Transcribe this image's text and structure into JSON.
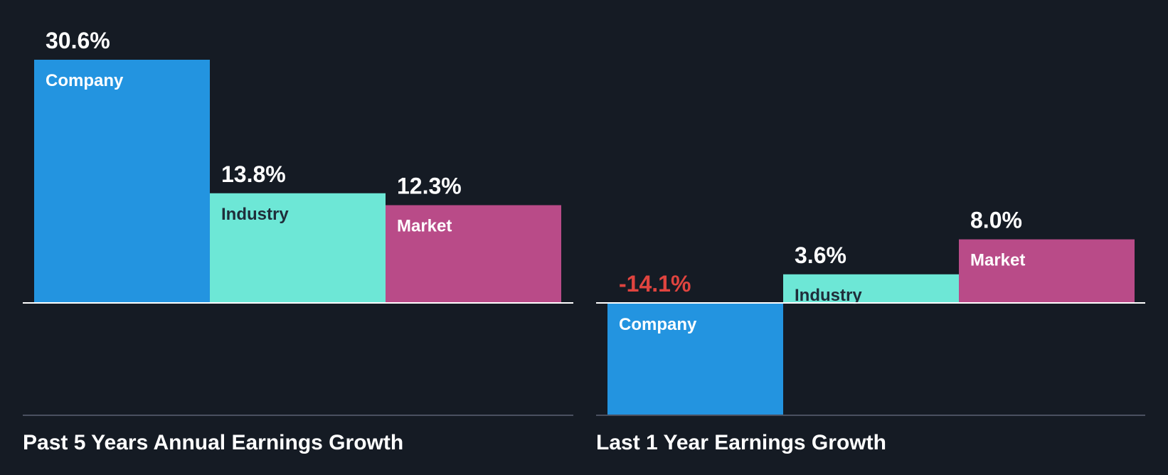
{
  "colors": {
    "background": "#151b24",
    "company": "#2394e0",
    "industry": "#6de7d6",
    "market": "#b94b88",
    "negative_value": "#e0443f",
    "value_text": "#ffffff",
    "axis": "#ffffff",
    "divider": "#4a5060"
  },
  "chart_data": [
    {
      "type": "bar",
      "title": "Past 5 Years Annual Earnings Growth",
      "unit": "%",
      "categories": [
        "Company",
        "Industry",
        "Market"
      ],
      "values": [
        30.6,
        13.8,
        12.3
      ],
      "value_labels": [
        "30.6%",
        "13.8%",
        "12.3%"
      ],
      "ylim": [
        -14.1,
        30.6
      ]
    },
    {
      "type": "bar",
      "title": "Last 1 Year Earnings Growth",
      "unit": "%",
      "categories": [
        "Company",
        "Industry",
        "Market"
      ],
      "values": [
        -14.1,
        3.6,
        8.0
      ],
      "value_labels": [
        "-14.1%",
        "3.6%",
        "8.0%"
      ],
      "ylim": [
        -14.1,
        30.6
      ]
    }
  ]
}
